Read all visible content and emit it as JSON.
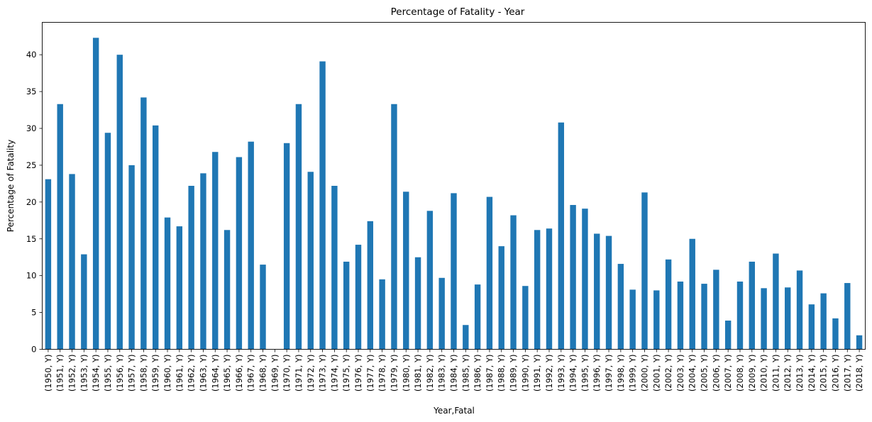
{
  "chart_data": {
    "type": "bar",
    "title": "Percentage of Fatality - Year",
    "xlabel": "Year,Fatal",
    "ylabel": "Percentage of Fatality",
    "ylim": [
      0,
      44.4
    ],
    "yticks": [
      0,
      5,
      10,
      15,
      20,
      25,
      30,
      35,
      40
    ],
    "grid": false,
    "bar_color": "#1f77b4",
    "categories": [
      "(1950, Y)",
      "(1951, Y)",
      "(1952, Y)",
      "(1953, Y)",
      "(1954, Y)",
      "(1955, Y)",
      "(1956, Y)",
      "(1957, Y)",
      "(1958, Y)",
      "(1959, Y)",
      "(1960, Y)",
      "(1961, Y)",
      "(1962, Y)",
      "(1963, Y)",
      "(1964, Y)",
      "(1965, Y)",
      "(1966, Y)",
      "(1967, Y)",
      "(1968, Y)",
      "(1969, Y)",
      "(1970, Y)",
      "(1971, Y)",
      "(1972, Y)",
      "(1973, Y)",
      "(1974, Y)",
      "(1975, Y)",
      "(1976, Y)",
      "(1977, Y)",
      "(1978, Y)",
      "(1979, Y)",
      "(1980, Y)",
      "(1981, Y)",
      "(1982, Y)",
      "(1983, Y)",
      "(1984, Y)",
      "(1985, Y)",
      "(1986, Y)",
      "(1987, Y)",
      "(1988, Y)",
      "(1989, Y)",
      "(1990, Y)",
      "(1991, Y)",
      "(1992, Y)",
      "(1993, Y)",
      "(1994, Y)",
      "(1995, Y)",
      "(1996, Y)",
      "(1997, Y)",
      "(1998, Y)",
      "(1999, Y)",
      "(2000, Y)",
      "(2001, Y)",
      "(2002, Y)",
      "(2003, Y)",
      "(2004, Y)",
      "(2005, Y)",
      "(2006, Y)",
      "(2007, Y)",
      "(2008, Y)",
      "(2009, Y)",
      "(2010, Y)",
      "(2011, Y)",
      "(2012, Y)",
      "(2013, Y)",
      "(2014, Y)",
      "(2015, Y)",
      "(2016, Y)",
      "(2017, Y)",
      "(2018, Y)"
    ],
    "values": [
      23.1,
      33.3,
      23.8,
      12.9,
      42.3,
      29.4,
      40.0,
      25.0,
      34.2,
      30.4,
      17.9,
      16.7,
      22.2,
      23.9,
      26.8,
      16.2,
      26.1,
      28.2,
      11.5,
      0.0,
      28.0,
      33.3,
      24.1,
      39.1,
      22.2,
      11.9,
      14.2,
      17.4,
      9.5,
      33.3,
      21.4,
      12.5,
      18.8,
      9.7,
      21.2,
      3.3,
      8.8,
      20.7,
      14.0,
      18.2,
      8.6,
      16.2,
      16.4,
      30.8,
      19.6,
      19.1,
      15.7,
      15.4,
      11.6,
      8.1,
      21.3,
      8.0,
      12.2,
      9.2,
      15.0,
      8.9,
      10.8,
      3.9,
      9.2,
      11.9,
      8.3,
      13.0,
      8.4,
      10.7,
      6.1,
      7.6,
      4.2,
      9.0,
      1.9
    ]
  }
}
